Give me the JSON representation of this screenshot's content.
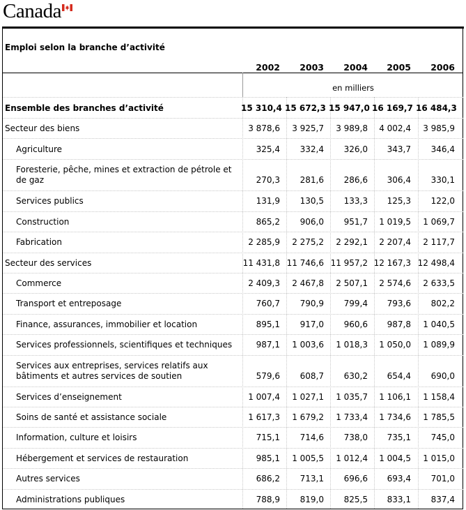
{
  "caption": "Emploi selon la branche d’activité",
  "unit": "en milliers",
  "wordmark": "Canada",
  "years": [
    "2002",
    "2003",
    "2004",
    "2005",
    "2006"
  ],
  "rows": [
    {
      "label": "Ensemble des branches d’activité",
      "values": [
        "15 310,4",
        "15 672,3",
        "15 947,0",
        "16 169,7",
        "16 484,3"
      ]
    },
    {
      "label": "Secteur des biens",
      "values": [
        "3 878,6",
        "3 925,7",
        "3 989,8",
        "4 002,4",
        "3 985,9"
      ]
    },
    {
      "label": "Agriculture",
      "values": [
        "325,4",
        "332,4",
        "326,0",
        "343,7",
        "346,4"
      ]
    },
    {
      "label": "Foresterie, pêche, mines et extraction de pétrole et de gaz",
      "values": [
        "270,3",
        "281,6",
        "286,6",
        "306,4",
        "330,1"
      ]
    },
    {
      "label": "Services publics",
      "values": [
        "131,9",
        "130,5",
        "133,3",
        "125,3",
        "122,0"
      ]
    },
    {
      "label": "Construction",
      "values": [
        "865,2",
        "906,0",
        "951,7",
        "1 019,5",
        "1 069,7"
      ]
    },
    {
      "label": "Fabrication",
      "values": [
        "2 285,9",
        "2 275,2",
        "2 292,1",
        "2 207,4",
        "2 117,7"
      ]
    },
    {
      "label": "Secteur des services",
      "values": [
        "11 431,8",
        "11 746,6",
        "11 957,2",
        "12 167,3",
        "12 498,4"
      ]
    },
    {
      "label": "Commerce",
      "values": [
        "2 409,3",
        "2 467,8",
        "2 507,1",
        "2 574,6",
        "2 633,5"
      ]
    },
    {
      "label": "Transport et entreposage",
      "values": [
        "760,7",
        "790,9",
        "799,4",
        "793,6",
        "802,2"
      ]
    },
    {
      "label": "Finance, assurances, immobilier et location",
      "values": [
        "895,1",
        "917,0",
        "960,6",
        "987,8",
        "1 040,5"
      ]
    },
    {
      "label": "Services professionnels, scientifiques et techniques",
      "values": [
        "987,1",
        "1 003,6",
        "1 018,3",
        "1 050,0",
        "1 089,9"
      ]
    },
    {
      "label": "Services aux entreprises, services relatifs aux bâtiments et autres services de soutien",
      "values": [
        "579,6",
        "608,7",
        "630,2",
        "654,4",
        "690,0"
      ]
    },
    {
      "label": "Services d’enseignement",
      "values": [
        "1 007,4",
        "1 027,1",
        "1 035,7",
        "1 106,1",
        "1 158,4"
      ]
    },
    {
      "label": "Soins de santé et assistance sociale",
      "values": [
        "1 617,3",
        "1 679,2",
        "1 733,4",
        "1 734,6",
        "1 785,5"
      ]
    },
    {
      "label": "Information, culture et loisirs",
      "values": [
        "715,1",
        "714,6",
        "738,0",
        "735,1",
        "745,0"
      ]
    },
    {
      "label": "Hébergement et services de restauration",
      "values": [
        "985,1",
        "1 005,5",
        "1 012,4",
        "1 004,5",
        "1 015,0"
      ]
    },
    {
      "label": "Autres services",
      "values": [
        "686,2",
        "713,1",
        "696,6",
        "693,4",
        "701,0"
      ]
    },
    {
      "label": "Administrations publiques",
      "values": [
        "788,9",
        "819,0",
        "825,5",
        "833,1",
        "837,4"
      ]
    }
  ]
}
